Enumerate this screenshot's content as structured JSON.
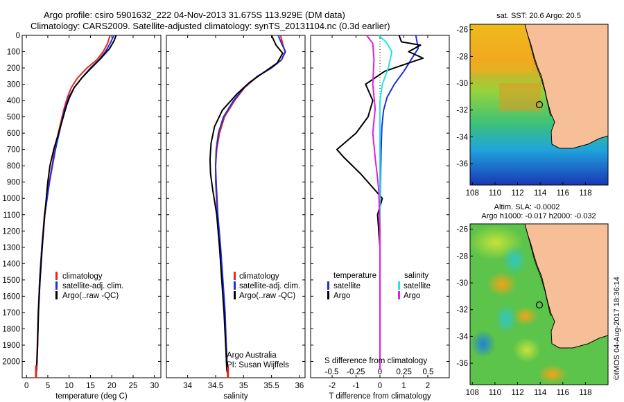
{
  "header": {
    "title_line1": "Argo profile: csiro 5901632_222 04-Nov-2013 31.675S 113.929E (DM data)",
    "title_line2": "Climatology: CARS2009. Satellite-adjusted climatology: synTS_20131104.nc (0.3d earlier)"
  },
  "colors": {
    "climatology": "#e8261c",
    "satellite": "#1f2ee0",
    "argo": "#000000",
    "sat_salinity": "#22e4e4",
    "argo_salinity": "#e01ee0",
    "land": "#f6bf97"
  },
  "chart_data": [
    {
      "type": "line",
      "xlabel": "temperature (deg C)",
      "ylim": [
        2100,
        0
      ],
      "xlim": [
        -1,
        31.5
      ],
      "xticks": [
        "0",
        "5",
        "10",
        "15",
        "20",
        "25",
        "30"
      ],
      "yticks": [
        "0",
        "100",
        "200",
        "300",
        "400",
        "500",
        "600",
        "700",
        "800",
        "900",
        "1000",
        "1100",
        "1200",
        "1300",
        "1400",
        "1500",
        "1600",
        "1700",
        "1800",
        "1900",
        "2000"
      ],
      "legend": [
        "climatology",
        "satellite-adj. clim.",
        "Argo(..raw -QC)"
      ],
      "series": [
        {
          "name": "climatology",
          "x": [
            19.6,
            19,
            18,
            16.5,
            14.2,
            12,
            10.5,
            9.6,
            8.7,
            7.8,
            6.6,
            6,
            5.3,
            4.2,
            3.6,
            3.1,
            2.75,
            2.55,
            2.35,
            2.25
          ],
          "y": [
            0,
            50,
            100,
            150,
            200,
            260,
            320,
            380,
            460,
            560,
            700,
            800,
            900,
            1100,
            1300,
            1500,
            1700,
            1900,
            2050,
            2070
          ]
        },
        {
          "name": "satellite-adj. clim.",
          "x": [
            20.5,
            19.6,
            18.5,
            17,
            15,
            13,
            11.2,
            9.9,
            8.9,
            8,
            6.8,
            6.1,
            5.4,
            4.3,
            3.6,
            3.1,
            2.8,
            2.6,
            2.4,
            2.3
          ],
          "y": [
            0,
            50,
            100,
            150,
            200,
            260,
            320,
            380,
            460,
            560,
            700,
            800,
            900,
            1100,
            1300,
            1500,
            1700,
            1900,
            2050,
            2070
          ]
        },
        {
          "name": "Argo(..raw -QC)",
          "x": [
            21,
            20.6,
            19.5,
            17.5,
            15.2,
            13,
            11.2,
            10.1,
            9.4,
            8.2,
            6.4,
            5.5,
            5,
            4.3,
            3.7,
            3.2,
            2.8,
            2.6,
            2.4,
            2.3
          ],
          "y": [
            0,
            30,
            80,
            140,
            200,
            260,
            320,
            380,
            430,
            540,
            700,
            800,
            900,
            1100,
            1300,
            1500,
            1700,
            1900,
            2050,
            2070
          ]
        }
      ]
    },
    {
      "type": "line",
      "xlabel": "salinity",
      "xlim": [
        33.62,
        36.1
      ],
      "ylim": [
        2100,
        0
      ],
      "xticks": [
        "34",
        "34.5",
        "35",
        "35.5",
        "36"
      ],
      "legend": [
        "climatology",
        "satellite-adj. clim.",
        "Argo(..raw -QC)"
      ],
      "annotation": [
        "Argo Australia",
        "PI: Susan Wijffels"
      ],
      "series": [
        {
          "name": "climatology",
          "x": [
            35.66,
            35.7,
            35.74,
            35.68,
            35.5,
            35.26,
            35.02,
            34.84,
            34.66,
            34.57,
            34.52,
            34.5,
            34.5,
            34.53,
            34.58,
            34.62,
            34.66,
            34.69,
            34.71,
            34.72
          ],
          "y": [
            0,
            50,
            100,
            150,
            200,
            250,
            320,
            400,
            500,
            600,
            700,
            800,
            900,
            1100,
            1300,
            1500,
            1700,
            1900,
            2050,
            2070
          ]
        },
        {
          "name": "satellite-adj. clim.",
          "x": [
            35.62,
            35.68,
            35.75,
            35.68,
            35.5,
            35.25,
            35.01,
            34.82,
            34.64,
            34.55,
            34.51,
            34.5,
            34.51,
            34.54,
            34.59,
            34.63,
            34.67,
            34.69,
            34.71,
            34.72
          ],
          "y": [
            0,
            50,
            100,
            150,
            200,
            250,
            320,
            400,
            500,
            600,
            700,
            800,
            900,
            1100,
            1300,
            1500,
            1700,
            1900,
            2050,
            2070
          ]
        },
        {
          "name": "Argo(..raw -QC)",
          "x": [
            35.5,
            35.58,
            35.7,
            35.6,
            35.35,
            35.1,
            34.88,
            34.62,
            34.48,
            34.42,
            34.4,
            34.41,
            34.45,
            34.52,
            34.57,
            34.61,
            34.65,
            34.68,
            34.7,
            34.71
          ],
          "y": [
            0,
            60,
            110,
            170,
            230,
            290,
            360,
            460,
            560,
            660,
            760,
            850,
            950,
            1100,
            1300,
            1500,
            1700,
            1900,
            2050,
            2070
          ]
        }
      ]
    },
    {
      "type": "line",
      "xlabel": "T difference from climatology",
      "top_xlabel": "S difference from climatology",
      "xlim": [
        -2.9,
        2.9
      ],
      "ylim": [
        2100,
        0
      ],
      "xticks": [
        "-2",
        "-1",
        "0",
        "1",
        "2"
      ],
      "top_xticks": [
        "-0.5",
        "-0.25",
        "0",
        "0.25",
        "0.5"
      ],
      "legend_titles": [
        "temperature",
        "salinity"
      ],
      "legend": [
        "satellite",
        "Argo",
        "satellite",
        "Argo"
      ],
      "series": [
        {
          "name": "satellite",
          "x": [
            1.5,
            1.6,
            1.3,
            1.0,
            0.6,
            0.3,
            0.15,
            0.08,
            0.05,
            0.02,
            0,
            0,
            0,
            0,
            0,
            0
          ],
          "y": [
            0,
            80,
            150,
            220,
            300,
            380,
            460,
            560,
            700,
            900,
            1100,
            1300,
            1500,
            1700,
            1900,
            2050
          ]
        },
        {
          "name": "Argo",
          "x": [
            0.8,
            0.9,
            1.7,
            1.2,
            1.8,
            1.0,
            0.2,
            -0.6,
            -0.3,
            -0.5,
            -1.0,
            -1.8,
            -1.5,
            -0.8,
            -0.2,
            0.1,
            -0.1,
            0,
            0,
            0
          ],
          "y": [
            0,
            40,
            60,
            100,
            140,
            180,
            220,
            300,
            400,
            500,
            600,
            700,
            750,
            850,
            950,
            1000,
            1100,
            1300,
            1700,
            2050
          ]
        },
        {
          "name": "satellite",
          "x": [
            -0.05,
            0.25,
            0.5,
            0.35,
            0.1,
            0,
            0,
            0,
            0,
            0,
            0
          ],
          "y": [
            0,
            40,
            100,
            200,
            300,
            400,
            500,
            800,
            1100,
            1500,
            2050
          ]
        },
        {
          "name": "Argo",
          "x": [
            -0.55,
            -0.3,
            -0.25,
            -0.3,
            -0.2,
            -0.3,
            -0.2,
            -0.12,
            -0.05,
            0,
            0
          ],
          "y": [
            0,
            50,
            150,
            300,
            450,
            600,
            750,
            850,
            950,
            1200,
            2050
          ]
        }
      ]
    }
  ],
  "maps": {
    "top": {
      "title": "sat. SST: 20.6 Argo: 20.5",
      "xticks": [
        "108",
        "110",
        "112",
        "114",
        "116",
        "118"
      ],
      "yticks": [
        "-26",
        "-28",
        "-30",
        "-32",
        "-34",
        "-36"
      ],
      "argo_marker": [
        113.929,
        -31.675
      ]
    },
    "bottom": {
      "title_line1": "Altim. SLA: -0.0002",
      "title_line2": "Argo h1000: -0.017 h2000: -0.032",
      "xticks": [
        "108",
        "110",
        "112",
        "114",
        "116",
        "118"
      ],
      "yticks": [
        "-26",
        "-28",
        "-30",
        "-32",
        "-34",
        "-36"
      ],
      "argo_marker": [
        113.929,
        -31.675
      ]
    }
  },
  "footer": {
    "credit": "©IMOS 04-Aug-2017 18:36:14"
  }
}
